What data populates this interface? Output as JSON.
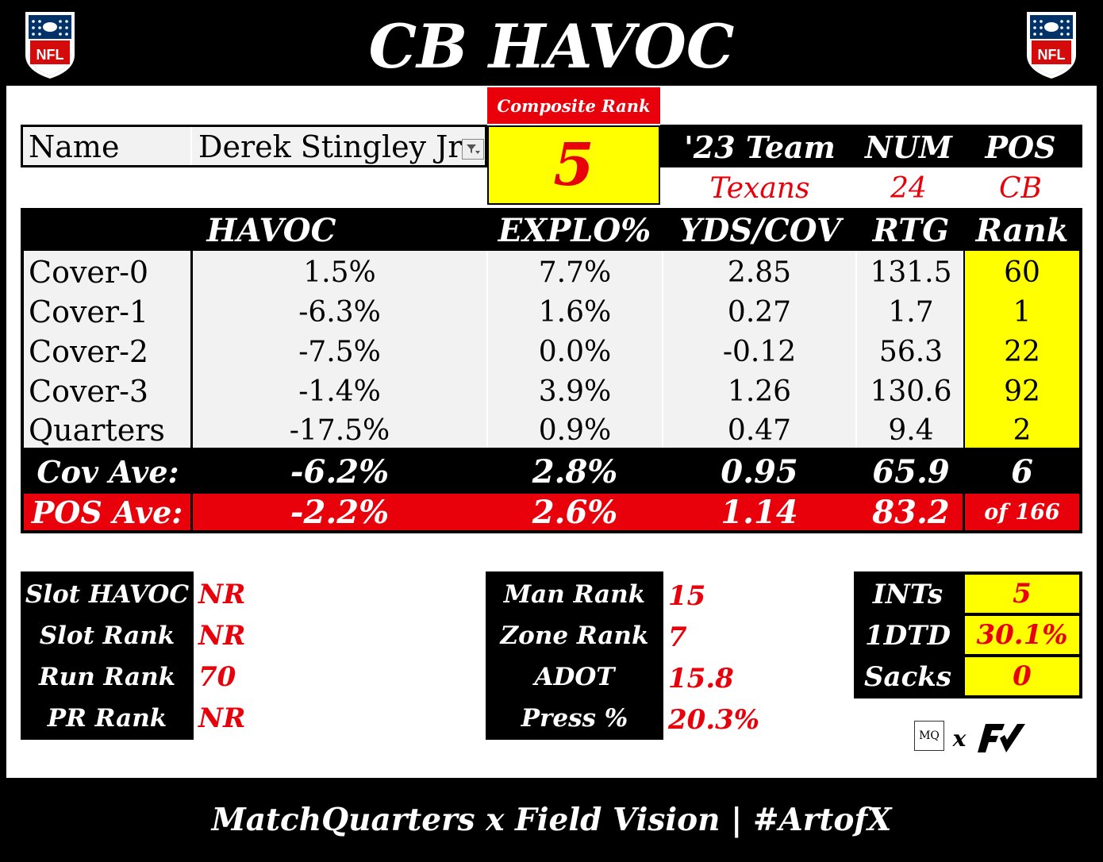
{
  "title": "CB HAVOC",
  "logo_left": "nfl-shield-icon",
  "logo_right": "nfl-shield-icon",
  "composite": {
    "label": "Composite Rank",
    "value": "5"
  },
  "name_row": {
    "label": "Name",
    "value": "Derek Stingley Jr.",
    "filter_icon": "filter-dropdown-icon"
  },
  "team_info": {
    "headers": [
      "'23 Team",
      "NUM",
      "POS"
    ],
    "values": [
      "Texans",
      "24",
      "CB"
    ]
  },
  "stats": {
    "headers": [
      "HAVOC",
      "EXPLO%",
      "YDS/COV",
      "RTG",
      "Rank"
    ],
    "rows": [
      {
        "label": "Cover-0",
        "havoc": "1.5%",
        "explo": "7.7%",
        "yds": "2.85",
        "rtg": "131.5",
        "rank": "60"
      },
      {
        "label": "Cover-1",
        "havoc": "-6.3%",
        "explo": "1.6%",
        "yds": "0.27",
        "rtg": "1.7",
        "rank": "1"
      },
      {
        "label": "Cover-2",
        "havoc": "-7.5%",
        "explo": "0.0%",
        "yds": "-0.12",
        "rtg": "56.3",
        "rank": "22"
      },
      {
        "label": "Cover-3",
        "havoc": "-1.4%",
        "explo": "3.9%",
        "yds": "1.26",
        "rtg": "130.6",
        "rank": "92"
      },
      {
        "label": "Quarters",
        "havoc": "-17.5%",
        "explo": "0.9%",
        "yds": "0.47",
        "rtg": "9.4",
        "rank": "2"
      }
    ],
    "cov_ave": {
      "label": "Cov Ave:",
      "havoc": "-6.2%",
      "explo": "2.8%",
      "yds": "0.95",
      "rtg": "65.9",
      "rank": "6"
    },
    "pos_ave": {
      "label": "POS Ave:",
      "havoc": "-2.2%",
      "explo": "2.6%",
      "yds": "1.14",
      "rtg": "83.2",
      "rank": "of 166"
    }
  },
  "slot_block": [
    {
      "label": "Slot HAVOC",
      "value": "NR"
    },
    {
      "label": "Slot Rank",
      "value": "NR"
    },
    {
      "label": "Run Rank",
      "value": "70"
    },
    {
      "label": "PR Rank",
      "value": "NR"
    }
  ],
  "man_block": [
    {
      "label": "Man Rank",
      "value": "15"
    },
    {
      "label": "Zone Rank",
      "value": "7"
    },
    {
      "label": "ADOT",
      "value": "15.8"
    },
    {
      "label": "Press %",
      "value": "20.3%"
    }
  ],
  "ints_block": [
    {
      "label": "INTs",
      "value": "5"
    },
    {
      "label": "1DTD",
      "value": "30.1%"
    },
    {
      "label": "Sacks",
      "value": "0"
    }
  ],
  "branding": {
    "mq": "MQ",
    "x": "x",
    "fv_icon": "field-vision-logo-icon"
  },
  "footer": "MatchQuarters x Field Vision | #ArtofX",
  "colors": {
    "red": "#e8000b",
    "yellow": "#ffff00",
    "black": "#000000",
    "light_gray": "#f2f2f2"
  }
}
